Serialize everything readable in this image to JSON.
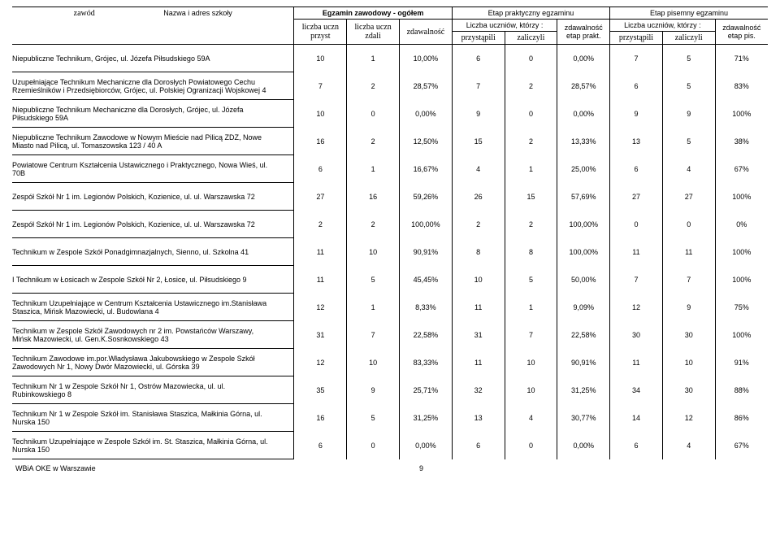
{
  "header": {
    "zawod": "zawód",
    "nazwa": "Nazwa i adres szkoły",
    "group1": "Egzamin zawodowy - ogółem",
    "group2": "Etap praktyczny egzaminu",
    "group3": "Etap pisemny egzaminu",
    "lu_przyst": "liczba uczn przyst",
    "lu_zdali": "liczba uczn zdali",
    "zdaw": "zdawalność",
    "lu_ktorzy": "Liczba uczniów, którzy :",
    "zdaw_prakt": "zdawalność etap prakt.",
    "zdaw_pis": "zdawalność etap pis.",
    "przystapili": "przystąpili",
    "zaliczyli": "zaliczyli"
  },
  "rows": [
    {
      "name": "Niepubliczne Technikum, Grójec, ul. Józefa Piłsudskiego 59A",
      "a": "10",
      "b": "1",
      "c": "10,00%",
      "d": "6",
      "e": "0",
      "f": "0,00%",
      "g": "7",
      "h": "5",
      "i": "71%"
    },
    {
      "name": "Uzupełniające Technikum Mechaniczne dla Dorosłych Powiatowego Cechu Rzemieślników i Przedsiębiorców, Grójec, ul. Polskiej Ogranizacji Wojskowej 4",
      "a": "7",
      "b": "2",
      "c": "28,57%",
      "d": "7",
      "e": "2",
      "f": "28,57%",
      "g": "6",
      "h": "5",
      "i": "83%"
    },
    {
      "name": "Niepubliczne Technikum Mechaniczne dla Dorosłych, Grójec, ul. Józefa Piłsudskiego 59A",
      "a": "10",
      "b": "0",
      "c": "0,00%",
      "d": "9",
      "e": "0",
      "f": "0,00%",
      "g": "9",
      "h": "9",
      "i": "100%"
    },
    {
      "name": "Niepubliczne Technikum Zawodowe w Nowym Mieście  nad Pilicą ZDZ, Nowe Miasto nad Pilicą, ul. Tomaszowska 123 / 40 A",
      "a": "16",
      "b": "2",
      "c": "12,50%",
      "d": "15",
      "e": "2",
      "f": "13,33%",
      "g": "13",
      "h": "5",
      "i": "38%"
    },
    {
      "name": "Powiatowe Centrum Kształcenia Ustawicznego i Praktycznego, Nowa Wieś, ul. 70B",
      "a": "6",
      "b": "1",
      "c": "16,67%",
      "d": "4",
      "e": "1",
      "f": "25,00%",
      "g": "6",
      "h": "4",
      "i": "67%"
    },
    {
      "name": "Zespół Szkół Nr 1 im. Legionów Polskich, Kozienice, ul. ul. Warszawska 72",
      "a": "27",
      "b": "16",
      "c": "59,26%",
      "d": "26",
      "e": "15",
      "f": "57,69%",
      "g": "27",
      "h": "27",
      "i": "100%"
    },
    {
      "name": "Zespół Szkół Nr 1 im. Legionów Polskich, Kozienice, ul. ul. Warszawska 72",
      "a": "2",
      "b": "2",
      "c": "100,00%",
      "d": "2",
      "e": "2",
      "f": "100,00%",
      "g": "0",
      "h": "0",
      "i": "0%"
    },
    {
      "name": "Technikum w Zespole Szkół Ponadgimnazjalnych, Sienno, ul. Szkolna 41",
      "a": "11",
      "b": "10",
      "c": "90,91%",
      "d": "8",
      "e": "8",
      "f": "100,00%",
      "g": "11",
      "h": "11",
      "i": "100%"
    },
    {
      "name": "I Technikum w Łosicach w Zespole Szkół Nr 2, Łosice, ul. Piłsudskiego 9",
      "a": "11",
      "b": "5",
      "c": "45,45%",
      "d": "10",
      "e": "5",
      "f": "50,00%",
      "g": "7",
      "h": "7",
      "i": "100%"
    },
    {
      "name": "Technikum Uzupełniające w Centrum Kształcenia Ustawicznego im.Stanisława Staszica, Mińsk Mazowiecki, ul. Budowlana 4",
      "a": "12",
      "b": "1",
      "c": "8,33%",
      "d": "11",
      "e": "1",
      "f": "9,09%",
      "g": "12",
      "h": "9",
      "i": "75%"
    },
    {
      "name": "Technikum w Zespole Szkół Zawodowych nr 2 im. Powstańców Warszawy, Mińsk Mazowiecki, ul. Gen.K.Sosnkowskiego 43",
      "a": "31",
      "b": "7",
      "c": "22,58%",
      "d": "31",
      "e": "7",
      "f": "22,58%",
      "g": "30",
      "h": "30",
      "i": "100%"
    },
    {
      "name": "Technikum Zawodowe im.por.Władysława Jakubowskiego w Zespole Szkół Zawodowych Nr 1, Nowy Dwór Mazowiecki, ul. Górska 39",
      "a": "12",
      "b": "10",
      "c": "83,33%",
      "d": "11",
      "e": "10",
      "f": "90,91%",
      "g": "11",
      "h": "10",
      "i": "91%"
    },
    {
      "name": "Technikum Nr 1 w Zespole Szkół Nr 1, Ostrów Mazowiecka, ul. ul. Rubinkowskiego 8",
      "a": "35",
      "b": "9",
      "c": "25,71%",
      "d": "32",
      "e": "10",
      "f": "31,25%",
      "g": "34",
      "h": "30",
      "i": "88%"
    },
    {
      "name": "Technikum Nr 1  w Zespole Szkół im. Stanisława Staszica, Małkinia Górna, ul. Nurska 150",
      "a": "16",
      "b": "5",
      "c": "31,25%",
      "d": "13",
      "e": "4",
      "f": "30,77%",
      "g": "14",
      "h": "12",
      "i": "86%"
    },
    {
      "name": "Technikum Uzupełniające  w Zespole Szkół im. St. Staszica, Małkinia Górna, ul. Nurska 150",
      "a": "6",
      "b": "0",
      "c": "0,00%",
      "d": "6",
      "e": "0",
      "f": "0,00%",
      "g": "6",
      "h": "4",
      "i": "67%"
    }
  ],
  "footer": {
    "left": "WBiA OKE w Warszawie",
    "page": "9"
  }
}
